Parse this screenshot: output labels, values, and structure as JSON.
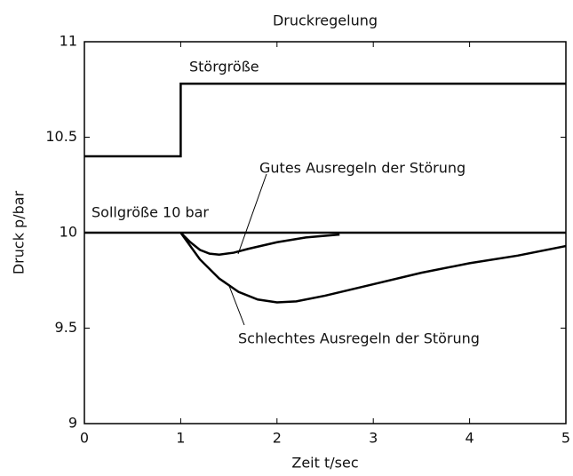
{
  "chart_data": {
    "type": "line",
    "title": "Druckregelung",
    "xlabel": "Zeit t/sec",
    "ylabel": "Druck p/bar",
    "xlim": [
      0,
      5
    ],
    "ylim": [
      9,
      11
    ],
    "xticks": [
      0,
      1,
      2,
      3,
      4,
      5
    ],
    "yticks": [
      9,
      9.5,
      10,
      10.5,
      11
    ],
    "series": [
      {
        "name": "Störgröße",
        "color": "#000000",
        "x": [
          0,
          1,
          1,
          5
        ],
        "values": [
          10.4,
          10.4,
          10.78,
          10.78
        ]
      },
      {
        "name": "Sollgröße 10 bar",
        "color": "#000000",
        "x": [
          0,
          5
        ],
        "values": [
          10,
          10
        ]
      },
      {
        "name": "Gutes Ausregeln der Störung",
        "color": "#000000",
        "x": [
          1,
          1.1,
          1.2,
          1.3,
          1.4,
          1.55,
          1.7,
          2.0,
          2.3,
          2.65
        ],
        "values": [
          10,
          9.95,
          9.91,
          9.89,
          9.885,
          9.895,
          9.915,
          9.95,
          9.975,
          9.99
        ]
      },
      {
        "name": "Schlechtes Ausregeln der Störung",
        "color": "#000000",
        "x": [
          1,
          1.2,
          1.4,
          1.6,
          1.8,
          2.0,
          2.2,
          2.5,
          3.0,
          3.5,
          4.0,
          4.5,
          5.0
        ],
        "values": [
          10,
          9.86,
          9.76,
          9.69,
          9.65,
          9.635,
          9.64,
          9.67,
          9.73,
          9.79,
          9.84,
          9.88,
          9.93
        ]
      }
    ]
  }
}
